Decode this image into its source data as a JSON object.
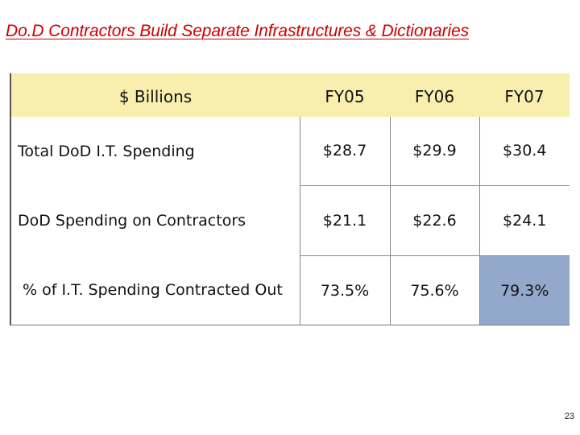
{
  "slide": {
    "title": "Do.D Contractors Build Separate Infrastructures & Dictionaries",
    "page_number": "23"
  },
  "table": {
    "header": [
      "$ Billions",
      "FY05",
      "FY06",
      "FY07"
    ],
    "rows": [
      {
        "label": "Total DoD I.T. Spending",
        "values": [
          "$28.7",
          "$29.9",
          "$30.4"
        ]
      },
      {
        "label": "DoD Spending on Contractors",
        "values": [
          "$21.1",
          "$22.6",
          "$24.1"
        ]
      },
      {
        "label": "% of I.T. Spending Contracted Out",
        "values": [
          "73.5%",
          "75.6%",
          "79.3%"
        ]
      }
    ]
  },
  "colors": {
    "title": "#cc0000",
    "header_background": "#f8efae",
    "highlight_cell": "#93a9cb"
  }
}
